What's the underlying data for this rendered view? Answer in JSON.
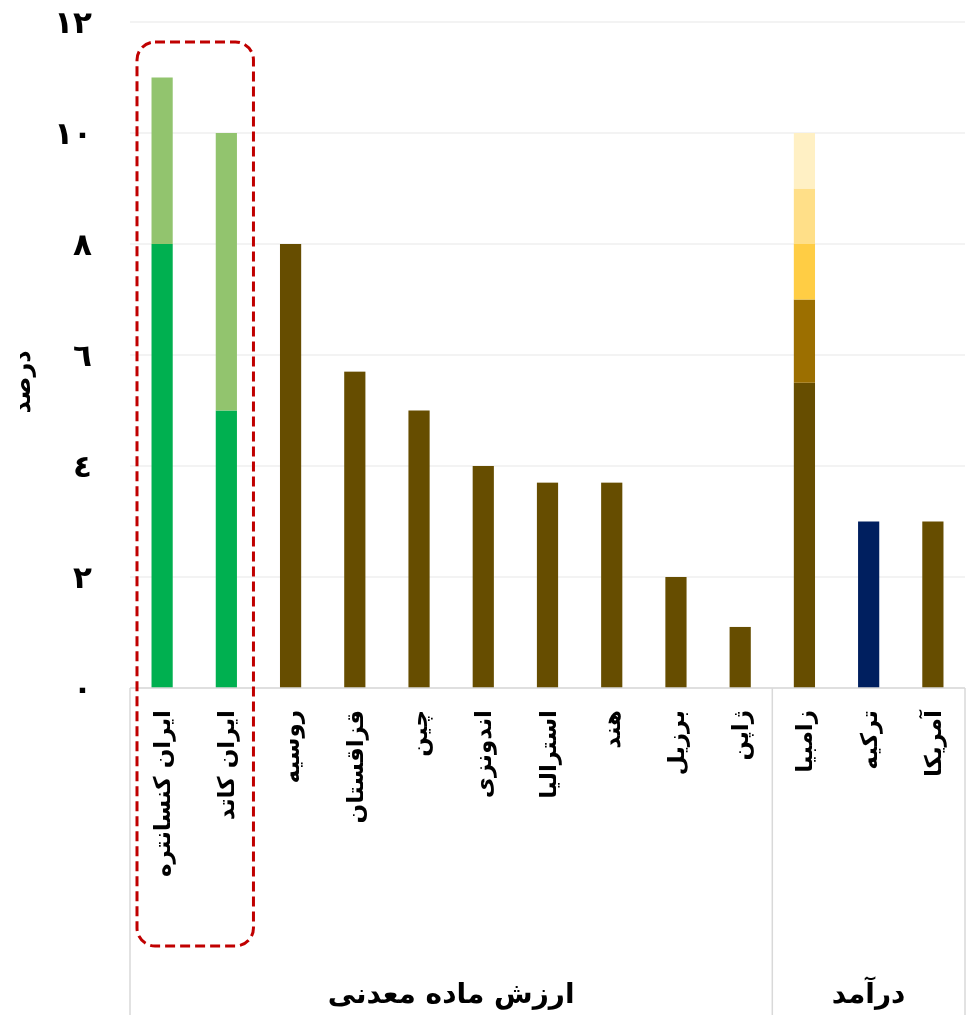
{
  "chart_data": {
    "type": "bar",
    "stacked": true,
    "ylabel": "درصد",
    "categories": [
      "ایران کنسانتره",
      "ایران کاتد",
      "روسیه",
      "قزاقستان",
      "چین",
      "اندونزی",
      "استرالیا",
      "هند",
      "برزیل",
      "ژاپن",
      "زامبیا",
      "ترکیه",
      "آمریکا"
    ],
    "series": [
      {
        "colors": [
          "#00b050",
          "#00b050",
          "#664d00",
          "#664d00",
          "#664d00",
          "#664d00",
          "#664d00",
          "#664d00",
          "#664d00",
          "#664d00",
          "#664d00",
          "#001f5f",
          "#664d00"
        ],
        "values": [
          8,
          5,
          8,
          5.7,
          5,
          4,
          3.7,
          3.7,
          2,
          1.1,
          5.5,
          3,
          3
        ]
      },
      {
        "colors": [
          "#92c46e",
          "#92c46e",
          null,
          null,
          null,
          null,
          null,
          null,
          null,
          null,
          "#9c6f00",
          null,
          null
        ],
        "values": [
          3,
          5,
          null,
          null,
          null,
          null,
          null,
          null,
          null,
          null,
          1.5,
          null,
          null
        ]
      },
      {
        "color": "#ffcd44",
        "values": [
          null,
          null,
          null,
          null,
          null,
          null,
          null,
          null,
          null,
          null,
          1,
          null,
          null
        ]
      },
      {
        "color": "#ffdf88",
        "values": [
          null,
          null,
          null,
          null,
          null,
          null,
          null,
          null,
          null,
          null,
          1,
          null,
          null
        ]
      },
      {
        "color": "#fff0c4",
        "values": [
          null,
          null,
          null,
          null,
          null,
          null,
          null,
          null,
          null,
          null,
          1,
          null,
          null
        ]
      }
    ],
    "ylim": [
      0,
      12
    ],
    "yticks": [
      {
        "value": 0,
        "label": "٠"
      },
      {
        "value": 2,
        "label": "٢"
      },
      {
        "value": 4,
        "label": "٤"
      },
      {
        "value": 6,
        "label": "٦"
      },
      {
        "value": 8,
        "label": "٨"
      },
      {
        "value": 10,
        "label": "١٠"
      },
      {
        "value": 12,
        "label": "١٢"
      }
    ],
    "grid": "y",
    "annotations": [
      "ارزش ماده معدنی",
      "درآمد"
    ]
  }
}
